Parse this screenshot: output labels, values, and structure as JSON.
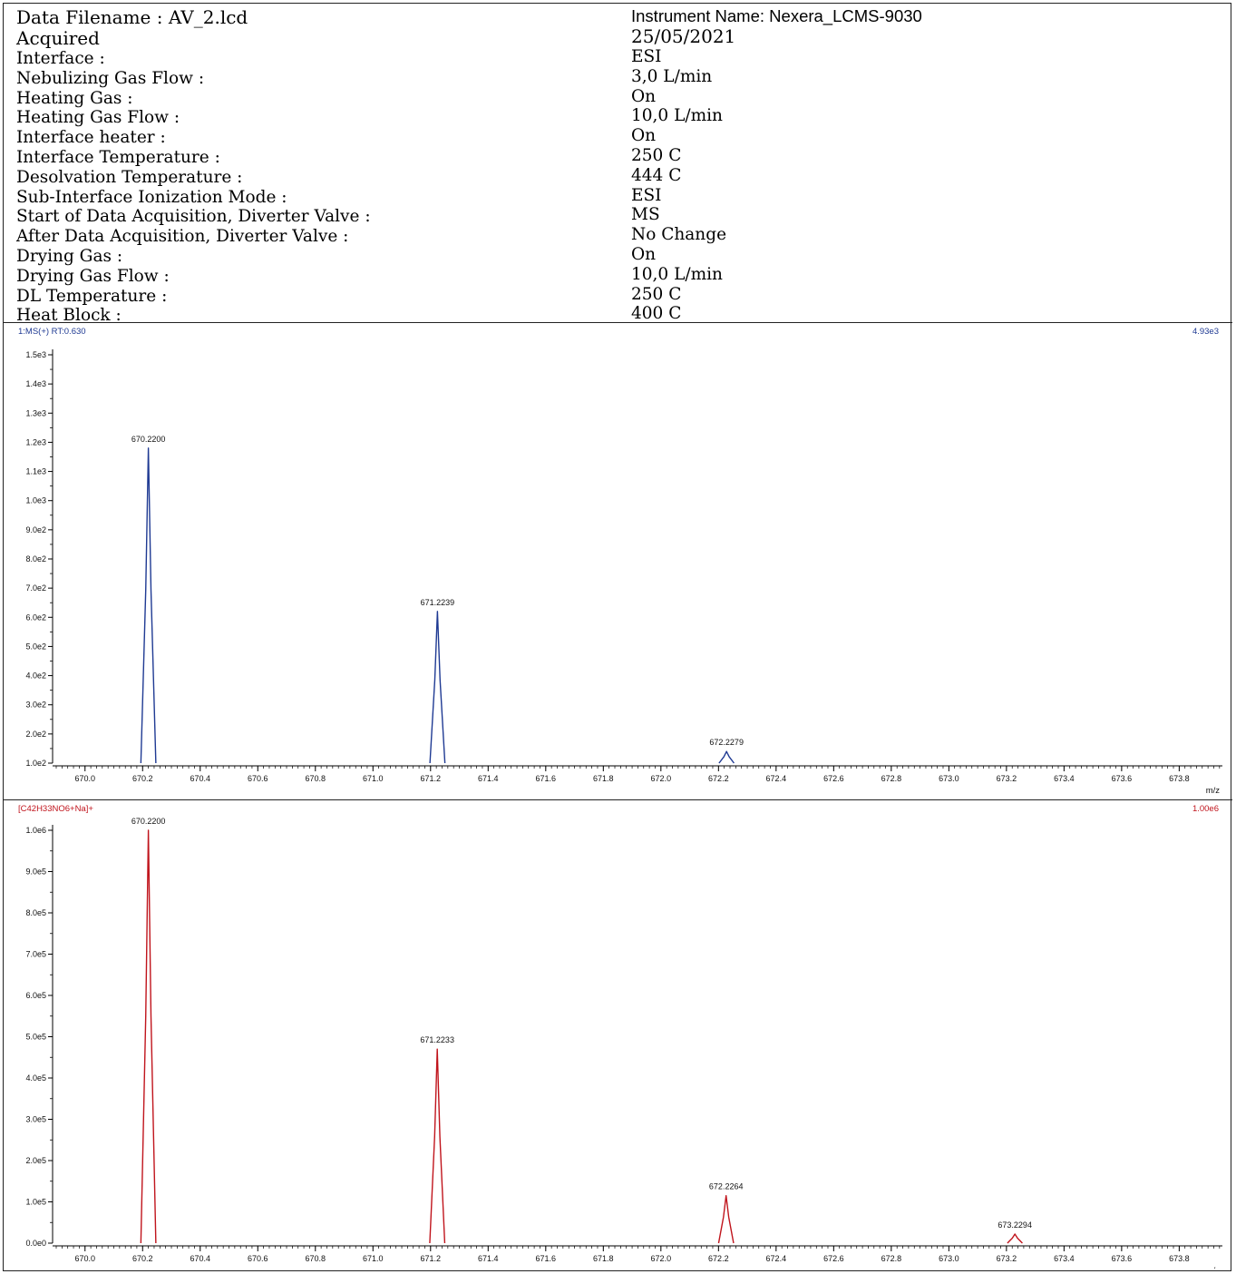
{
  "header": {
    "left_rows": [
      "Data Filename : AV_2.lcd",
      "Acquired",
      "Interface :",
      "Nebulizing Gas Flow :",
      "Heating Gas :",
      "Heating Gas Flow :",
      "Interface heater :",
      "Interface Temperature :",
      "Desolvation Temperature :",
      "Sub-Interface Ionization Mode :",
      "Start of Data Acquisition, Diverter Valve :",
      "After Data Acquisition, Diverter Valve :",
      "Drying Gas :",
      "Drying Gas Flow :",
      "DL Temperature :",
      "Heat Block :"
    ],
    "right_rows": [
      "Instrument Name: Nexera_LCMS-9030",
      "25/05/2021",
      "ESI",
      "3,0 L/min",
      "On",
      "10,0 L/min",
      "On",
      "250 C",
      "444 C",
      "ESI",
      "MS",
      "No Change",
      "On",
      "10,0 L/min",
      "250 C",
      "400 C"
    ]
  },
  "chart_data": [
    {
      "type": "line",
      "title": "1:MS(+) RT:0.630",
      "scale_label": "4.93e3",
      "color": "#1f3a93",
      "xlabel": "m/z",
      "xlim": [
        669.9,
        673.95
      ],
      "ylim": [
        100,
        1500
      ],
      "x_ticks": [
        "670.0",
        "670.2",
        "670.4",
        "670.6",
        "670.8",
        "671.0",
        "671.2",
        "671.4",
        "671.6",
        "671.8",
        "672.0",
        "672.2",
        "672.4",
        "672.6",
        "672.8",
        "673.0",
        "673.2",
        "673.4",
        "673.6",
        "673.8"
      ],
      "y_ticks": [
        "1.0e2",
        "2.0e2",
        "3.0e2",
        "4.0e2",
        "5.0e2",
        "6.0e2",
        "7.0e2",
        "8.0e2",
        "9.0e2",
        "1.0e3",
        "1.1e3",
        "1.2e3",
        "1.3e3",
        "1.4e3",
        "1.5e3"
      ],
      "peaks": [
        {
          "mz": 670.22,
          "label": "670.2200",
          "intensity": 1180
        },
        {
          "mz": 671.2239,
          "label": "671.2239",
          "intensity": 620
        },
        {
          "mz": 672.2279,
          "label": "672.2279",
          "intensity": 140
        }
      ]
    },
    {
      "type": "line",
      "title": "[C42H33NO6+Na]+",
      "scale_label": "1.00e6",
      "color": "#c0141c",
      "xlabel": "m/z",
      "xlim": [
        669.9,
        673.95
      ],
      "ylim": [
        0,
        1000000
      ],
      "x_ticks": [
        "670.0",
        "670.2",
        "670.4",
        "670.6",
        "670.8",
        "671.0",
        "671.2",
        "671.4",
        "671.6",
        "671.8",
        "672.0",
        "672.2",
        "672.4",
        "672.6",
        "672.8",
        "673.0",
        "673.2",
        "673.4",
        "673.6",
        "673.8"
      ],
      "y_ticks": [
        "0.0e0",
        "1.0e5",
        "2.0e5",
        "3.0e5",
        "4.0e5",
        "5.0e5",
        "6.0e5",
        "7.0e5",
        "8.0e5",
        "9.0e5",
        "1.0e6"
      ],
      "peaks": [
        {
          "mz": 670.22,
          "label": "670.2200",
          "intensity": 1000000
        },
        {
          "mz": 671.2233,
          "label": "671.2233",
          "intensity": 470000
        },
        {
          "mz": 672.2264,
          "label": "672.2264",
          "intensity": 115000
        },
        {
          "mz": 673.2294,
          "label": "673.2294",
          "intensity": 22000
        }
      ]
    }
  ]
}
